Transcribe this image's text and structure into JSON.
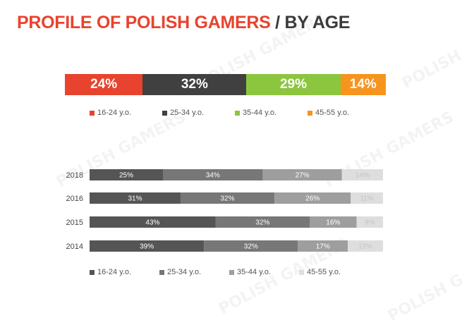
{
  "title": {
    "main": "PROFILE OF POLISH GAMERS",
    "separator": " / ",
    "sub": "BY AGE"
  },
  "colors": {
    "title_red": "#e8432e",
    "title_dark": "#3a3a3a",
    "top_16_24": "#e8432e",
    "top_25_34": "#404040",
    "top_35_44": "#8cc63f",
    "top_45_55": "#f7941d",
    "year_16_24": "#555555",
    "year_25_34": "#777777",
    "year_35_44": "#9e9e9e",
    "year_45_55": "#dedede"
  },
  "watermark_text": "POLISH GAMERS",
  "chart_data": [
    {
      "type": "bar",
      "orientation": "horizontal",
      "stacked": true,
      "categories": [
        ""
      ],
      "series": [
        {
          "name": "16-24 y.o.",
          "values": [
            24
          ],
          "labels": [
            "24%"
          ]
        },
        {
          "name": "25-34 y.o.",
          "values": [
            32
          ],
          "labels": [
            "32%"
          ]
        },
        {
          "name": "35-44 y.o.",
          "values": [
            29
          ],
          "labels": [
            "29%"
          ]
        },
        {
          "name": "45-55 y.o.",
          "values": [
            14
          ],
          "labels": [
            "14%"
          ]
        }
      ],
      "legend": "bottom"
    },
    {
      "type": "bar",
      "orientation": "horizontal",
      "stacked": true,
      "categories": [
        "2018",
        "2016",
        "2015",
        "2014"
      ],
      "series": [
        {
          "name": "16-24 y.o.",
          "values": [
            25,
            31,
            43,
            39
          ],
          "labels": [
            "25%",
            "31%",
            "43%",
            "39%"
          ]
        },
        {
          "name": "25-34 y.o.",
          "values": [
            34,
            32,
            32,
            32
          ],
          "labels": [
            "34%",
            "32%",
            "32%",
            "32%"
          ]
        },
        {
          "name": "35-44 y.o.",
          "values": [
            27,
            26,
            16,
            17
          ],
          "labels": [
            "27%",
            "26%",
            "16%",
            "17%"
          ]
        },
        {
          "name": "45-55 y.o.",
          "values": [
            14,
            11,
            9,
            12
          ],
          "labels": [
            "14%",
            "11%",
            "9%",
            "12%"
          ]
        }
      ],
      "legend": "bottom",
      "grid": false
    }
  ]
}
